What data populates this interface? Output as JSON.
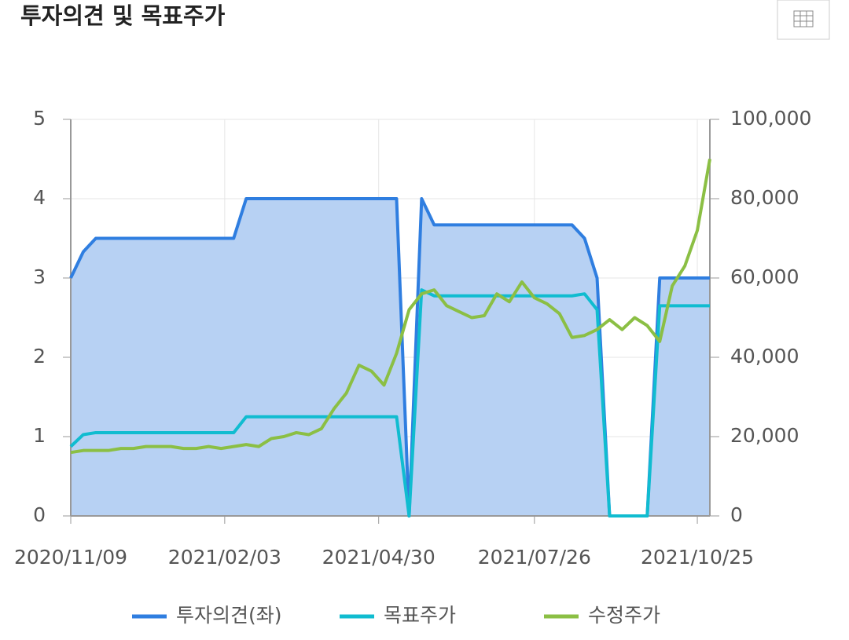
{
  "chart_data": {
    "type": "line",
    "title": "투자의견 및 목표주가",
    "x": [
      "2020/11/09",
      "2020/11/16",
      "2020/11/23",
      "2020/11/30",
      "2020/12/07",
      "2020/12/14",
      "2020/12/21",
      "2020/12/28",
      "2021/01/04",
      "2021/01/11",
      "2021/01/18",
      "2021/01/25",
      "2021/02/01",
      "2021/02/08",
      "2021/02/15",
      "2021/02/22",
      "2021/03/01",
      "2021/03/08",
      "2021/03/15",
      "2021/03/22",
      "2021/03/29",
      "2021/04/05",
      "2021/04/12",
      "2021/04/19",
      "2021/04/26",
      "2021/05/03",
      "2021/05/10",
      "2021/05/17",
      "2021/05/24",
      "2021/05/31",
      "2021/06/07",
      "2021/06/14",
      "2021/06/21",
      "2021/06/28",
      "2021/07/05",
      "2021/07/12",
      "2021/07/19",
      "2021/07/26",
      "2021/08/02",
      "2021/08/09",
      "2021/08/16",
      "2021/08/23",
      "2021/08/30",
      "2021/09/06",
      "2021/09/13",
      "2021/09/20",
      "2021/09/27",
      "2021/10/04",
      "2021/10/11",
      "2021/10/18",
      "2021/10/25",
      "2021/11/01"
    ],
    "xlim": [
      "2020/11/09",
      "2021/11/01"
    ],
    "xticks": [
      "2020/11/09",
      "2021/02/03",
      "2021/04/30",
      "2021/07/26",
      "2021/10/25"
    ],
    "ylim": [
      0,
      5
    ],
    "yticks": [
      0,
      1,
      2,
      3,
      4,
      5
    ],
    "y2lim": [
      0,
      100000
    ],
    "y2ticks": [
      0,
      {
        "value": 20000,
        "label": "20,000"
      },
      {
        "value": 40000,
        "label": "40,000"
      },
      {
        "value": 60000,
        "label": "60,000"
      },
      {
        "value": 80000,
        "label": "80,000"
      },
      {
        "value": 100000,
        "label": "100,000"
      }
    ],
    "grid": true,
    "series": [
      {
        "name": "투자의견(좌)",
        "color": "#2f7ee0",
        "area_color": "#b7d1f3",
        "values": [
          3,
          3.33,
          3.5,
          3.5,
          3.5,
          3.5,
          3.5,
          3.5,
          3.5,
          3.5,
          3.5,
          3.5,
          3.5,
          3.5,
          4,
          4,
          4,
          4,
          4,
          4,
          4,
          4,
          4,
          4,
          4,
          4,
          4,
          0,
          4,
          3.67,
          3.67,
          3.67,
          3.67,
          3.67,
          3.67,
          3.67,
          3.67,
          3.67,
          3.67,
          3.67,
          3.67,
          3.5,
          3,
          0,
          0,
          0,
          0,
          3,
          3,
          3,
          3,
          3
        ]
      },
      {
        "name": "목표주가",
        "color": "#10bcd0",
        "axis": "y2",
        "values": [
          17500,
          20500,
          21000,
          21000,
          21000,
          21000,
          21000,
          21000,
          21000,
          21000,
          21000,
          21000,
          21000,
          21000,
          25000,
          25000,
          25000,
          25000,
          25000,
          25000,
          25000,
          25000,
          25000,
          25000,
          25000,
          25000,
          25000,
          0,
          57000,
          55500,
          55500,
          55500,
          55500,
          55500,
          55500,
          55500,
          55500,
          55500,
          55500,
          55500,
          55500,
          56000,
          52000,
          0,
          0,
          0,
          0,
          53000,
          53000,
          53000,
          53000,
          53000
        ]
      },
      {
        "name": "수정주가",
        "color": "#8bbf44",
        "axis": "y2",
        "values": [
          16000,
          16500,
          16500,
          16500,
          17000,
          17000,
          17500,
          17500,
          17500,
          17000,
          17000,
          17500,
          17000,
          17500,
          18000,
          17500,
          19500,
          20000,
          21000,
          20500,
          22000,
          27000,
          31000,
          38000,
          36500,
          33000,
          41000,
          52000,
          56000,
          57000,
          53000,
          51500,
          50000,
          50500,
          56000,
          54000,
          59000,
          55000,
          53500,
          51000,
          45000,
          45500,
          47000,
          49500,
          47000,
          50000,
          48000,
          44000,
          58000,
          63000,
          72000,
          90000
        ]
      }
    ]
  }
}
